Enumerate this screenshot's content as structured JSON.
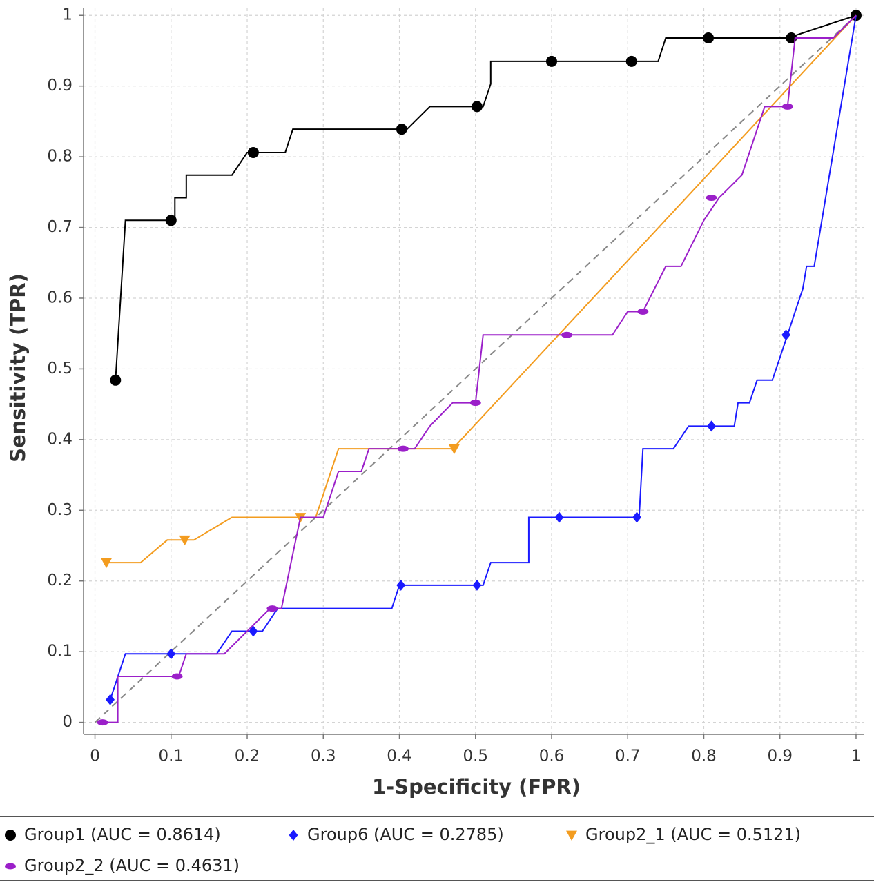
{
  "chart_data": {
    "type": "line",
    "x_label": "1-Specificity (FPR)",
    "y_label": "Sensitivity (TPR)",
    "xlim": [
      -0.015,
      1.01
    ],
    "ylim": [
      -0.017,
      1.01
    ],
    "xticks": [
      0,
      0.1,
      0.2,
      0.3,
      0.4,
      0.5,
      0.6,
      0.7,
      0.8,
      0.9,
      1
    ],
    "yticks": [
      0,
      0.1,
      0.2,
      0.3,
      0.4,
      0.5,
      0.6,
      0.7,
      0.8,
      0.9,
      1
    ],
    "grid": true,
    "legend": "bottom",
    "series": [
      {
        "name": "Group1 (AUC = 0.8614)",
        "color": "#000000",
        "marker": "circle",
        "x": [
          0.027,
          0.04,
          0.105,
          0.105,
          0.12,
          0.12,
          0.18,
          0.2,
          0.25,
          0.26,
          0.41,
          0.44,
          0.5,
          0.51,
          0.52,
          0.52,
          0.74,
          0.75,
          0.91,
          1.0
        ],
        "values": [
          0.484,
          0.71,
          0.71,
          0.742,
          0.742,
          0.774,
          0.774,
          0.806,
          0.806,
          0.839,
          0.839,
          0.871,
          0.871,
          0.871,
          0.903,
          0.935,
          0.935,
          0.968,
          0.968,
          1.0
        ],
        "points": {
          "x": [
            0.027,
            0.1,
            0.208,
            0.403,
            0.502,
            0.6,
            0.705,
            0.806,
            0.915,
            1.0
          ],
          "y": [
            0.484,
            0.71,
            0.806,
            0.839,
            0.871,
            0.935,
            0.935,
            0.968,
            0.968,
            1.0
          ]
        }
      },
      {
        "name": "Group6 (AUC = 0.2785)",
        "color": "#1a1aff",
        "marker": "diamond",
        "x": [
          0.02,
          0.04,
          0.16,
          0.18,
          0.22,
          0.24,
          0.39,
          0.4,
          0.51,
          0.52,
          0.57,
          0.57,
          0.715,
          0.72,
          0.76,
          0.78,
          0.84,
          0.845,
          0.86,
          0.87,
          0.89,
          0.9,
          0.91,
          0.92,
          0.93,
          0.935,
          0.945,
          1.0
        ],
        "values": [
          0.032,
          0.097,
          0.097,
          0.129,
          0.129,
          0.161,
          0.161,
          0.194,
          0.194,
          0.226,
          0.226,
          0.29,
          0.29,
          0.387,
          0.387,
          0.419,
          0.419,
          0.452,
          0.452,
          0.484,
          0.484,
          0.516,
          0.548,
          0.581,
          0.613,
          0.645,
          0.645,
          1.0
        ],
        "points": {
          "x": [
            0.02,
            0.1,
            0.208,
            0.402,
            0.502,
            0.61,
            0.712,
            0.81,
            0.908
          ],
          "y": [
            0.032,
            0.097,
            0.129,
            0.194,
            0.194,
            0.29,
            0.29,
            0.419,
            0.548
          ]
        }
      },
      {
        "name": "Group2_1 (AUC = 0.5121)",
        "color": "#f39c1f",
        "marker": "triangle-down",
        "x": [
          0.015,
          0.06,
          0.095,
          0.13,
          0.18,
          0.29,
          0.32,
          0.47,
          1.0
        ],
        "values": [
          0.226,
          0.226,
          0.258,
          0.258,
          0.29,
          0.29,
          0.387,
          0.387,
          1.0
        ],
        "points": {
          "x": [
            0.015,
            0.118,
            0.27,
            0.472
          ],
          "y": [
            0.226,
            0.258,
            0.29,
            0.387
          ]
        }
      },
      {
        "name": "Group2_2 (AUC = 0.4631)",
        "color": "#9b1fc9",
        "marker": "ellipse",
        "x": [
          0.01,
          0.03,
          0.03,
          0.11,
          0.12,
          0.17,
          0.2,
          0.23,
          0.245,
          0.27,
          0.3,
          0.32,
          0.35,
          0.36,
          0.42,
          0.44,
          0.47,
          0.5,
          0.51,
          0.68,
          0.7,
          0.72,
          0.75,
          0.77,
          0.8,
          0.82,
          0.85,
          0.88,
          0.91,
          0.92,
          0.97,
          1.0
        ],
        "values": [
          0,
          0,
          0.065,
          0.065,
          0.097,
          0.097,
          0.129,
          0.161,
          0.161,
          0.29,
          0.29,
          0.355,
          0.355,
          0.387,
          0.387,
          0.419,
          0.452,
          0.452,
          0.548,
          0.548,
          0.581,
          0.581,
          0.645,
          0.645,
          0.71,
          0.742,
          0.774,
          0.871,
          0.871,
          0.968,
          0.968,
          1.0
        ],
        "points": {
          "x": [
            0.01,
            0.108,
            0.233,
            0.405,
            0.5,
            0.62,
            0.72,
            0.81,
            0.91
          ],
          "y": [
            0,
            0.065,
            0.161,
            0.387,
            0.452,
            0.548,
            0.581,
            0.742,
            0.871
          ]
        }
      }
    ]
  }
}
